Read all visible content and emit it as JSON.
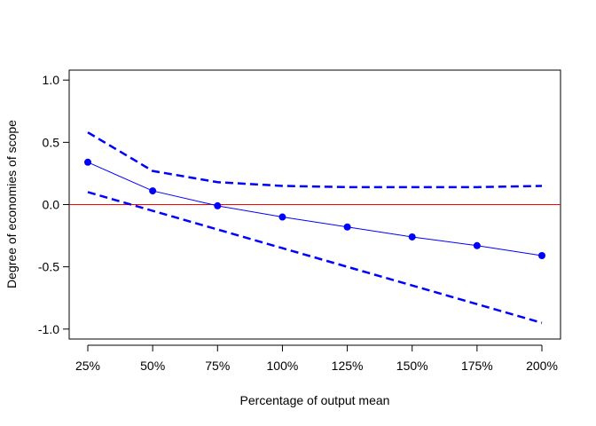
{
  "chart_data": {
    "type": "line",
    "title": "",
    "xlabel": "Percentage of output mean",
    "ylabel": "Degree of economies of scope",
    "categories": [
      "25%",
      "50%",
      "75%",
      "100%",
      "125%",
      "150%",
      "175%",
      "200%"
    ],
    "ylim": [
      -1.08,
      1.08
    ],
    "yticks": [
      1.0,
      0.5,
      0.0,
      -0.5,
      -1.0
    ],
    "ytick_labels": [
      "1.0",
      "0.5",
      "0.0",
      "-0.5",
      "-1.0"
    ],
    "grid": false,
    "reference_line": {
      "y": 0.0,
      "color": "#ff0000"
    },
    "series": [
      {
        "role": "estimate",
        "style": "solid-with-points",
        "color": "#0000ff",
        "values": [
          0.34,
          0.11,
          -0.01,
          -0.1,
          -0.18,
          -0.26,
          -0.33,
          -0.41
        ]
      },
      {
        "role": "upper-bound",
        "style": "dashed",
        "color": "#0000ff",
        "values": [
          0.58,
          0.27,
          0.18,
          0.15,
          0.14,
          0.14,
          0.14,
          0.15
        ]
      },
      {
        "role": "lower-bound",
        "style": "dashed",
        "color": "#0000ff",
        "values": [
          0.1,
          -0.05,
          -0.2,
          -0.35,
          -0.5,
          -0.65,
          -0.8,
          -0.95
        ]
      }
    ]
  }
}
